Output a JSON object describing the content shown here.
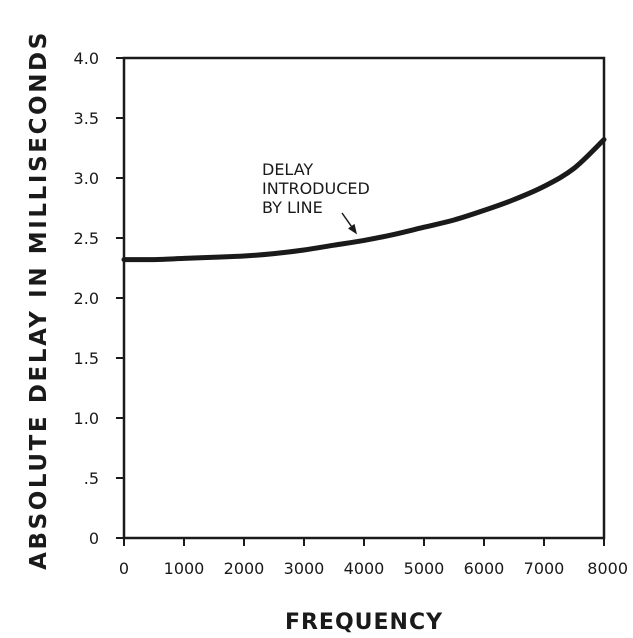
{
  "chart_data": {
    "type": "line",
    "title": "",
    "xlabel": "FREQUENCY",
    "ylabel": "ABSOLUTE DELAY IN MILLISECONDS",
    "xlim": [
      0,
      8000
    ],
    "ylim": [
      0,
      4.0
    ],
    "x_ticks": [
      0,
      1000,
      2000,
      3000,
      4000,
      5000,
      6000,
      7000,
      8000
    ],
    "x_tick_labels": [
      "0",
      "1000",
      "2000",
      "3000",
      "4000",
      "5000",
      "6000",
      "7000",
      "8000"
    ],
    "y_ticks": [
      0,
      0.5,
      1.0,
      1.5,
      2.0,
      2.5,
      3.0,
      3.5,
      4.0
    ],
    "y_tick_labels": [
      "0",
      ".5",
      "1.0",
      "1.5",
      "2.0",
      "2.5",
      "3.0",
      "3.5",
      "4.0"
    ],
    "grid": false,
    "series": [
      {
        "x": [
          0,
          500,
          1000,
          1500,
          2000,
          2500,
          3000,
          3500,
          4000,
          4500,
          5000,
          5500,
          6000,
          6500,
          7000,
          7500,
          8000
        ],
        "values": [
          2.32,
          2.32,
          2.33,
          2.34,
          2.35,
          2.37,
          2.4,
          2.44,
          2.48,
          2.53,
          2.59,
          2.65,
          2.73,
          2.82,
          2.93,
          3.08,
          3.32
        ]
      }
    ],
    "annotation": {
      "lines": [
        "DELAY",
        "INTRODUCED",
        "BY LINE"
      ],
      "points_to": [
        3950,
        2.48
      ]
    }
  }
}
